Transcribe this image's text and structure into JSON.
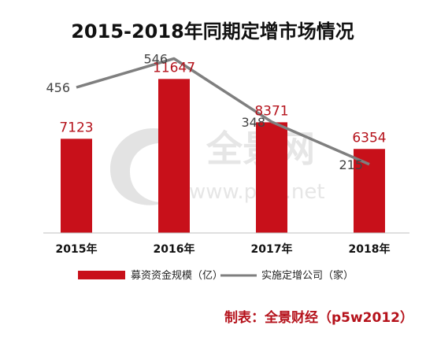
{
  "chart_data": {
    "type": "bar",
    "title": "2015-2018年同期定增市场情况",
    "categories": [
      "2015年",
      "2016年",
      "2017年",
      "2018年"
    ],
    "series": [
      {
        "name": "募资资金规模（亿）",
        "type": "bar",
        "values": [
          7123,
          11647,
          8371,
          6354
        ],
        "color": "#c8101a"
      },
      {
        "name": "实施定增公司（家）",
        "type": "line",
        "values": [
          456,
          546,
          348,
          215
        ],
        "color": "#7f7f7f"
      }
    ],
    "bar_ylim": [
      0,
      12500
    ],
    "line_ylim": [
      0,
      700
    ],
    "legend_position": "bottom",
    "grid": false
  },
  "credit": "制表：全景财经（p5w2012）",
  "watermark": {
    "brand": "全景网",
    "url": "www.p5w.net"
  }
}
